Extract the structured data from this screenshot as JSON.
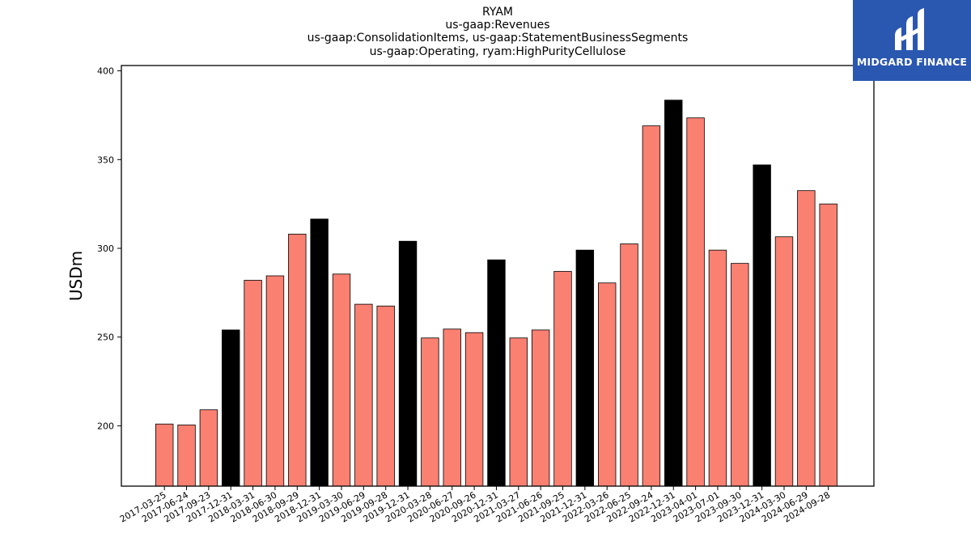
{
  "title_lines": [
    "RYAM",
    "us-gaap:Revenues",
    "us-gaap:ConsolidationItems, us-gaap:StatementBusinessSegments",
    "us-gaap:Operating, ryam:HighPurityCellulose"
  ],
  "logo": {
    "text": "MIDGARD FINANCE"
  },
  "colors": {
    "quarter": "#fa8072",
    "year_end": "#000000",
    "logo_bg": "#2a57b0"
  },
  "chart_data": {
    "type": "bar",
    "title": "RYAM\nus-gaap:Revenues\nus-gaap:ConsolidationItems, us-gaap:StatementBusinessSegments\nus-gaap:Operating, ryam:HighPurityCellulose",
    "xlabel": "",
    "ylabel": "USDm",
    "ylim": [
      166,
      403
    ],
    "yticks": [
      200,
      250,
      300,
      350,
      400
    ],
    "grid": false,
    "categories": [
      "2017-03-25",
      "2017-06-24",
      "2017-09-23",
      "2017-12-31",
      "2018-03-31",
      "2018-06-30",
      "2018-09-29",
      "2018-12-31",
      "2019-03-30",
      "2019-06-29",
      "2019-09-28",
      "2019-12-31",
      "2020-03-28",
      "2020-06-27",
      "2020-09-26",
      "2020-12-31",
      "2021-03-27",
      "2021-06-26",
      "2021-09-25",
      "2021-12-31",
      "2022-03-26",
      "2022-06-25",
      "2022-09-24",
      "2022-12-31",
      "2023-04-01",
      "2023-07-01",
      "2023-09-30",
      "2023-12-31",
      "2024-03-30",
      "2024-06-29",
      "2024-09-28"
    ],
    "values": [
      201,
      200.5,
      209,
      254,
      282,
      284.5,
      308,
      316.5,
      285.5,
      268.5,
      267.5,
      304,
      249.5,
      254.5,
      252.5,
      293.5,
      249.5,
      254,
      287,
      299,
      280.5,
      302.5,
      369,
      383.5,
      373.5,
      299,
      291.5,
      347,
      306.5,
      332.5,
      325
    ],
    "year_end": [
      false,
      false,
      false,
      true,
      false,
      false,
      false,
      true,
      false,
      false,
      false,
      true,
      false,
      false,
      false,
      true,
      false,
      false,
      false,
      true,
      false,
      false,
      false,
      true,
      false,
      false,
      false,
      true,
      false,
      false,
      false
    ]
  }
}
